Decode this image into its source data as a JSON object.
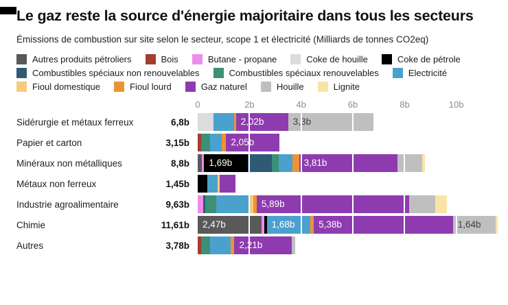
{
  "header": {
    "title": "Le gaz reste la source d'énergie majoritaire dans tous les secteurs",
    "subtitle": "Émissions de combustion sur site selon le secteur, scope 1 et électricité (Milliards de tonnes CO2eq)"
  },
  "chart_data": {
    "type": "bar",
    "orientation": "horizontal_stacked",
    "title": "Le gaz reste la source d'énergie majoritaire dans tous les secteurs",
    "subtitle": "Émissions de combustion sur site selon le secteur, scope 1 et électricité (Milliards de tonnes CO2eq)",
    "unit": "Milliards de tonnes CO2eq",
    "x_axis": {
      "ticks": [
        "0",
        "2b",
        "4b",
        "6b",
        "8b",
        "10b"
      ],
      "tick_values": [
        0,
        2,
        4,
        6,
        8,
        10
      ],
      "max": 12,
      "grid": "white-overlay"
    },
    "legend_position": "top",
    "legend": [
      {
        "label": "Autres produits pétroliers",
        "color": "#595959"
      },
      {
        "label": "Bois",
        "color": "#a33d2e"
      },
      {
        "label": "Butane - propane",
        "color": "#ee8ced"
      },
      {
        "label": "Coke de houille",
        "color": "#dcdcdc"
      },
      {
        "label": "Coke de pétrole",
        "color": "#000000"
      },
      {
        "label": "Combustibles spéciaux non renouvelables",
        "color": "#2e5a73"
      },
      {
        "label": "Combustibles spéciaux renouvelables",
        "color": "#3c9076"
      },
      {
        "label": "Electricité",
        "color": "#4ba1ce"
      },
      {
        "label": "Fioul domestique",
        "color": "#f5cb7e"
      },
      {
        "label": "Fioul lourd",
        "color": "#ec9433"
      },
      {
        "label": "Gaz naturel",
        "color": "#8e3bb0"
      },
      {
        "label": "Houille",
        "color": "#bfbfbf"
      },
      {
        "label": "Lignite",
        "color": "#f8e5a6"
      }
    ],
    "rows": [
      {
        "label": "Sidérurgie et métaux ferreux",
        "total": "6,8b",
        "segments": [
          {
            "source": "Coke de houille",
            "value": 0.62
          },
          {
            "source": "Electricité",
            "value": 0.78
          },
          {
            "source": "Fioul lourd",
            "value": 0.08
          },
          {
            "source": "Gaz naturel",
            "value": 2.02,
            "data_label": "2,02b"
          },
          {
            "source": "Houille",
            "value": 3.3,
            "data_label": "3,3b",
            "label_dark": true
          }
        ]
      },
      {
        "label": "Papier et carton",
        "total": "3,15b",
        "segments": [
          {
            "source": "Bois",
            "value": 0.13
          },
          {
            "source": "Combustibles spéciaux renouvelables",
            "value": 0.34
          },
          {
            "source": "Electricité",
            "value": 0.45
          },
          {
            "source": "Fioul lourd",
            "value": 0.18
          },
          {
            "source": "Gaz naturel",
            "value": 2.05,
            "data_label": "2,05b"
          }
        ]
      },
      {
        "label": "Minéraux non métalliques",
        "total": "8,8b",
        "segments": [
          {
            "source": "Autres produits pétroliers",
            "value": 0.15
          },
          {
            "source": "Butane - propane",
            "value": 0.1
          },
          {
            "source": "Coke de pétrole",
            "value": 1.69,
            "data_label": "1,69b"
          },
          {
            "source": "Combustibles spéciaux non renouvelables",
            "value": 0.93
          },
          {
            "source": "Combustibles spéciaux renouvelables",
            "value": 0.26
          },
          {
            "source": "Electricité",
            "value": 0.53
          },
          {
            "source": "Fioul lourd",
            "value": 0.26
          },
          {
            "source": "Gaz naturel",
            "value": 3.81,
            "data_label": "3,81b"
          },
          {
            "source": "Houille",
            "value": 0.94
          },
          {
            "source": "Lignite",
            "value": 0.13
          }
        ]
      },
      {
        "label": "Métaux non ferreux",
        "total": "1,45b",
        "segments": [
          {
            "source": "Coke de pétrole",
            "value": 0.37
          },
          {
            "source": "Electricité",
            "value": 0.4
          },
          {
            "source": "Fioul domestique",
            "value": 0.08
          },
          {
            "source": "Gaz naturel",
            "value": 0.6
          }
        ]
      },
      {
        "label": "Industrie agroalimentaire",
        "total": "9,63b",
        "segments": [
          {
            "source": "Butane - propane",
            "value": 0.2
          },
          {
            "source": "Combustibles spéciaux non renouvelables",
            "value": 0.1
          },
          {
            "source": "Combustibles spéciaux renouvelables",
            "value": 0.43
          },
          {
            "source": "Electricité",
            "value": 1.24
          },
          {
            "source": "Fioul domestique",
            "value": 0.18
          },
          {
            "source": "Fioul lourd",
            "value": 0.13
          },
          {
            "source": "Gaz naturel",
            "value": 5.89,
            "data_label": "5,89b"
          },
          {
            "source": "Houille",
            "value": 1.01
          },
          {
            "source": "Lignite",
            "value": 0.45
          }
        ]
      },
      {
        "label": "Chimie",
        "total": "11,61b",
        "segments": [
          {
            "source": "Autres produits pétroliers",
            "value": 2.47,
            "data_label": "2,47b"
          },
          {
            "source": "Butane - propane",
            "value": 0.1
          },
          {
            "source": "Coke de pétrole",
            "value": 0.1
          },
          {
            "source": "Electricité",
            "value": 1.68,
            "data_label": "1,68b"
          },
          {
            "source": "Fioul lourd",
            "value": 0.14
          },
          {
            "source": "Gaz naturel",
            "value": 5.38,
            "data_label": "5,38b"
          },
          {
            "source": "Houille",
            "value": 1.64,
            "data_label": "1,64b",
            "label_dark": true
          },
          {
            "source": "Lignite",
            "value": 0.1
          }
        ]
      },
      {
        "label": "Autres",
        "total": "3,78b",
        "segments": [
          {
            "source": "Bois",
            "value": 0.12
          },
          {
            "source": "Combustibles spéciaux renouvelables",
            "value": 0.35
          },
          {
            "source": "Electricité",
            "value": 0.8
          },
          {
            "source": "Fioul lourd",
            "value": 0.15
          },
          {
            "source": "Gaz naturel",
            "value": 2.21,
            "data_label": "2,21b"
          },
          {
            "source": "Houille",
            "value": 0.15
          }
        ]
      }
    ]
  }
}
